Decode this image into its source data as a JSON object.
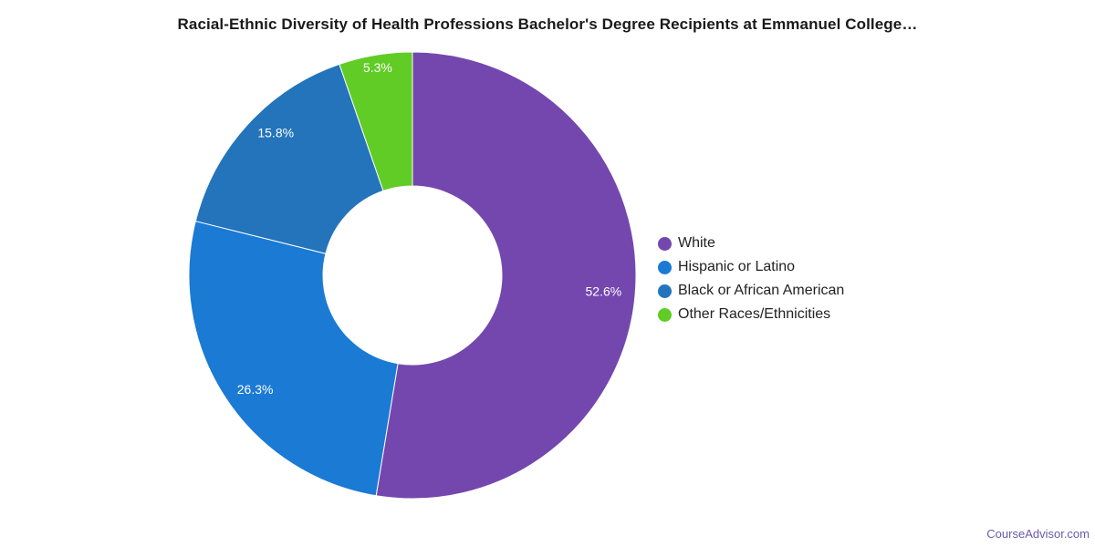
{
  "chart_data": {
    "type": "pie",
    "title": "Racial-Ethnic Diversity of Health Professions Bachelor's Degree Recipients at Emmanuel College…",
    "donut": true,
    "legend_position": "right",
    "slices": [
      {
        "label": "White",
        "value": 52.6,
        "value_label": "52.6%",
        "color": "#7447ae"
      },
      {
        "label": "Hispanic or Latino",
        "value": 26.3,
        "value_label": "26.3%",
        "color": "#1a7ad4"
      },
      {
        "label": "Black or African American",
        "value": 15.8,
        "value_label": "15.8%",
        "color": "#2374bb"
      },
      {
        "label": "Other Races/Ethnicities",
        "value": 5.3,
        "value_label": "5.3%",
        "color": "#61cc25"
      }
    ]
  },
  "source": {
    "text": "CourseAdvisor.com"
  }
}
